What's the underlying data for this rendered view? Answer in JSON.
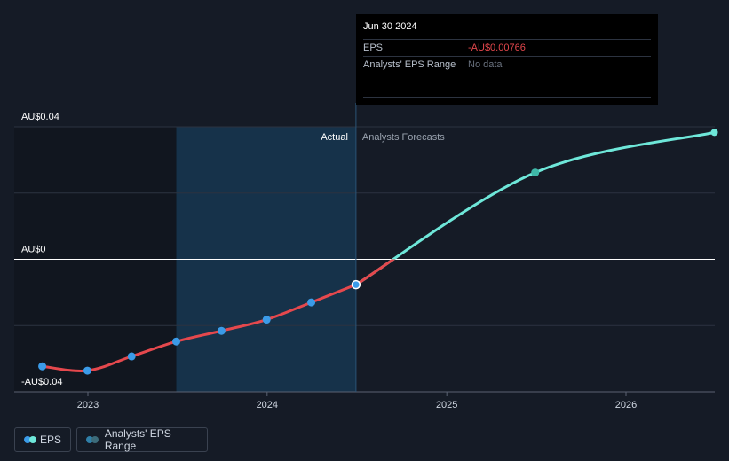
{
  "tooltip": {
    "date": "Jun 30 2024",
    "eps_label": "EPS",
    "eps_value": "-AU$0.00766",
    "range_label": "Analysts' EPS Range",
    "range_value": "No data"
  },
  "labels": {
    "actual": "Actual",
    "forecast": "Analysts Forecasts"
  },
  "legend": {
    "eps": "EPS",
    "range": "Analysts' EPS Range"
  },
  "colors": {
    "background": "#151b26",
    "actual_line": "#e5484d",
    "forecast_line": "#6ee7d9",
    "point": "#3b9be8",
    "highlight_band": "#16324a",
    "text_negative": "#e5484d"
  },
  "chart_data": {
    "type": "line",
    "x_ticks": [
      "2023",
      "2024",
      "2025",
      "2026"
    ],
    "y_ticks": [
      "AU$0.04",
      "AU$0",
      "-AU$0.04"
    ],
    "y_tick_values": [
      0.04,
      0,
      -0.04
    ],
    "ylim": [
      -0.04,
      0.04
    ],
    "xlim": [
      "2022-09-01",
      "2026-06-30"
    ],
    "grid": true,
    "divider_date": "2024-06-30",
    "highlight_range": [
      "2023-06-30",
      "2024-06-30"
    ],
    "series": [
      {
        "name": "EPS",
        "kind": "actual",
        "points": [
          {
            "x": "2022-09-30",
            "y": -0.0323
          },
          {
            "x": "2022-12-31",
            "y": -0.0336
          },
          {
            "x": "2023-03-31",
            "y": -0.0293
          },
          {
            "x": "2023-06-30",
            "y": -0.0248
          },
          {
            "x": "2023-09-30",
            "y": -0.0216
          },
          {
            "x": "2023-12-31",
            "y": -0.0182
          },
          {
            "x": "2024-03-31",
            "y": -0.013
          },
          {
            "x": "2024-06-30",
            "y": -0.00766
          }
        ],
        "markers": true
      },
      {
        "name": "EPS",
        "kind": "forecast",
        "points": [
          {
            "x": "2024-06-30",
            "y": -0.00766
          },
          {
            "x": "2025-06-30",
            "y": 0.0262
          },
          {
            "x": "2026-06-30",
            "y": 0.0383
          }
        ],
        "marker_dates": [
          "2025-06-30"
        ]
      }
    ]
  }
}
